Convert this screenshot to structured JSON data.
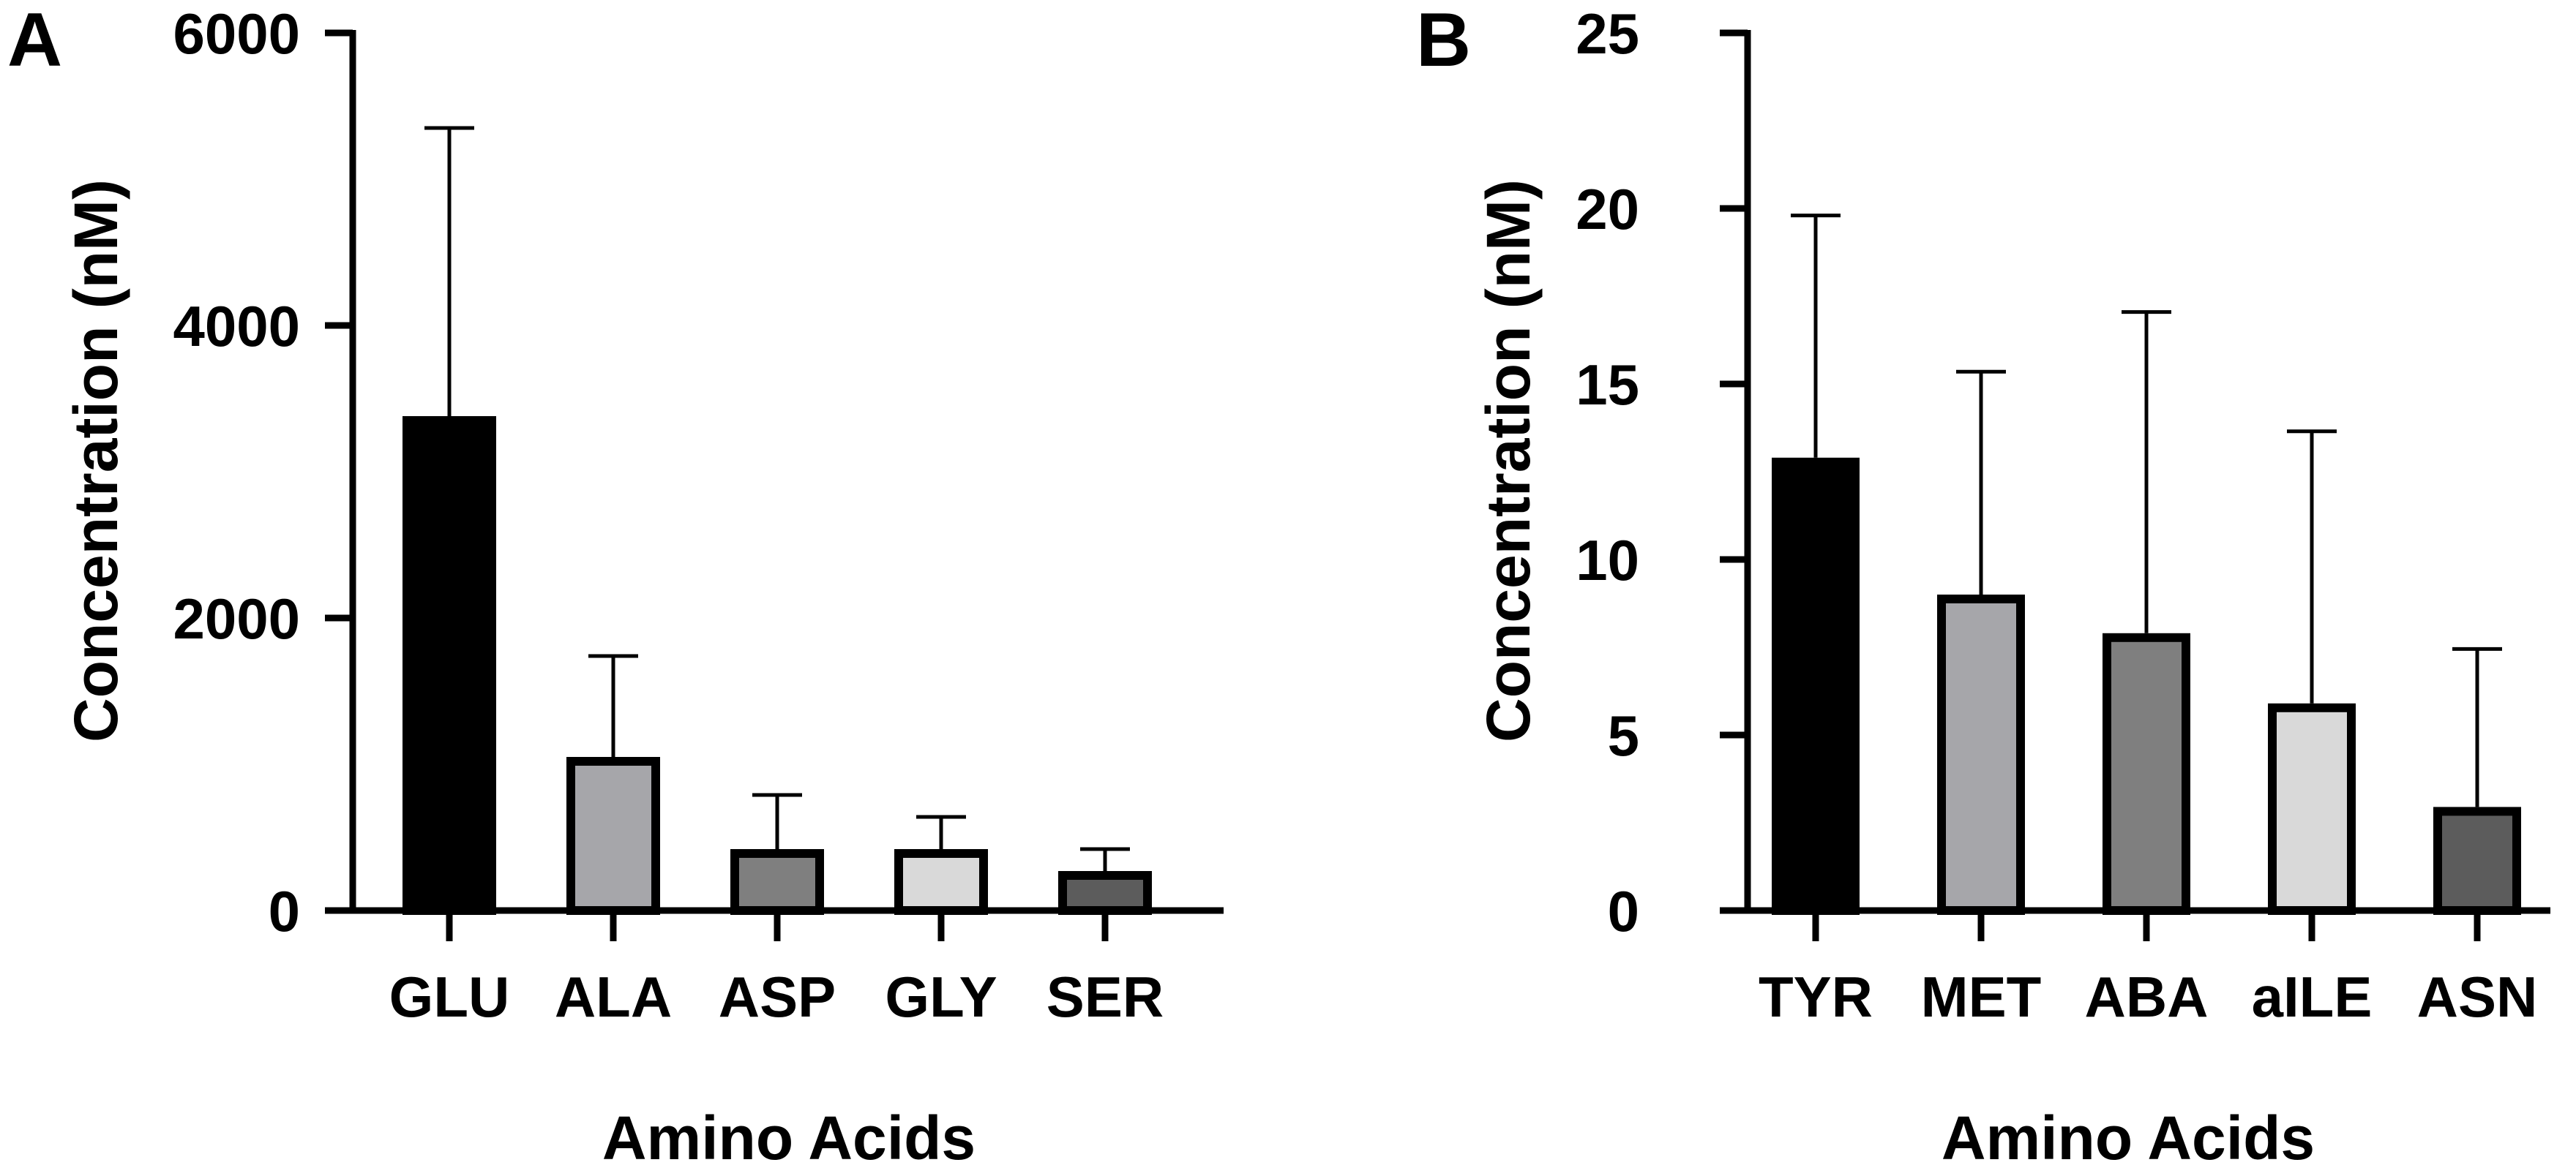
{
  "chart_data": [
    {
      "panel_label": "A",
      "type": "bar",
      "categories": [
        "GLU",
        "ALA",
        "ASP",
        "GLY",
        "SER"
      ],
      "values": [
        3380,
        1050,
        420,
        420,
        270
      ],
      "error_upper": [
        5350,
        1740,
        790,
        640,
        420
      ],
      "colors": [
        "#000000",
        "#a6a6aa",
        "#7f7f7f",
        "#d9d9d9",
        "#5c5c5c"
      ],
      "ylim": [
        0,
        6000
      ],
      "yticks": [
        0,
        2000,
        4000,
        6000
      ],
      "ytick_labels": [
        "0",
        "2000",
        "4000",
        "6000"
      ],
      "xlabel": "Amino Acids",
      "ylabel": "Concentration (nM)",
      "grid": false
    },
    {
      "panel_label": "B",
      "type": "bar",
      "categories": [
        "TYR",
        "MET",
        "ABA",
        "aILE",
        "ASN"
      ],
      "values": [
        12.9,
        9.0,
        7.9,
        5.9,
        2.95
      ],
      "error_upper": [
        19.8,
        15.35,
        17.05,
        13.65,
        7.45
      ],
      "colors": [
        "#000000",
        "#a6a6aa",
        "#7f7f7f",
        "#d9d9d9",
        "#5c5c5c"
      ],
      "ylim": [
        0,
        25
      ],
      "yticks": [
        0,
        5,
        10,
        15,
        20,
        25
      ],
      "ytick_labels": [
        "0",
        "5",
        "10",
        "15",
        "20",
        "25"
      ],
      "xlabel": "Amino Acids",
      "ylabel": "Concentration (nM)",
      "grid": false
    }
  ]
}
